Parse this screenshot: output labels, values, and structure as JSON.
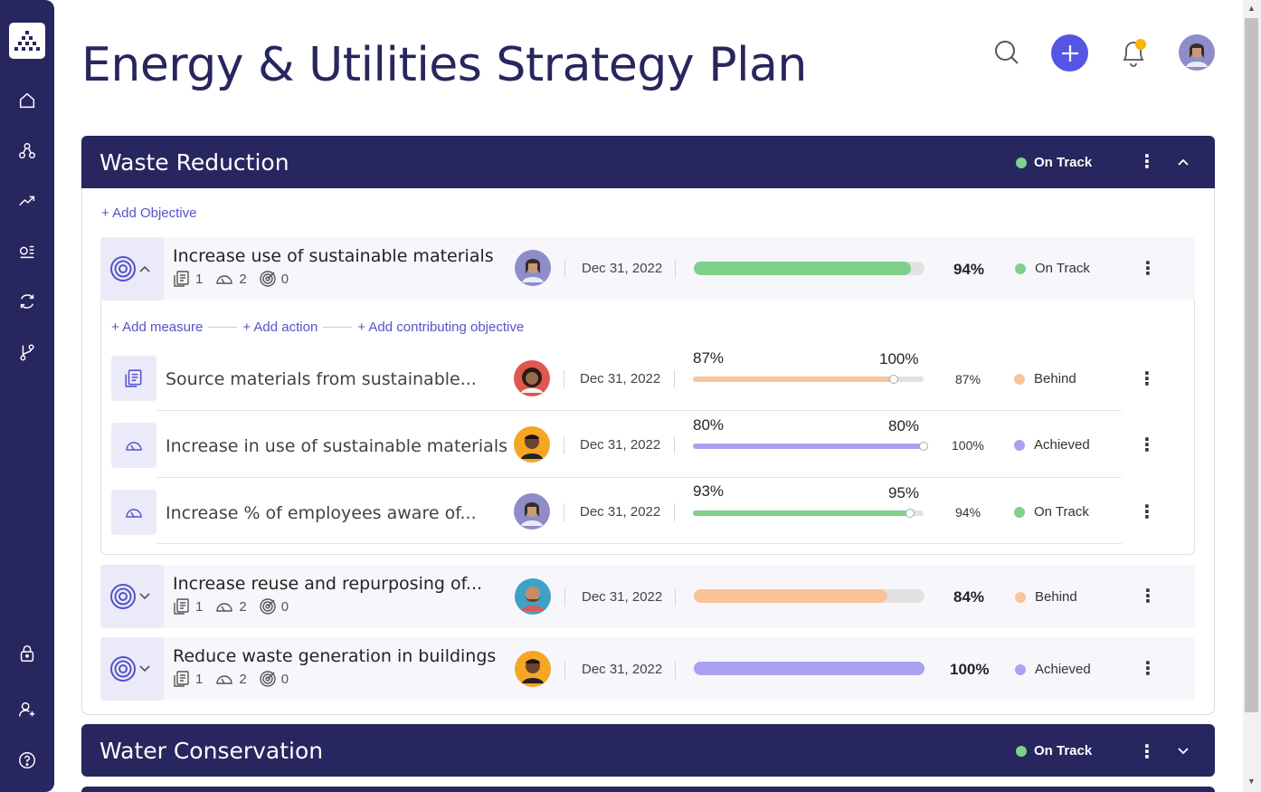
{
  "page": {
    "title": "Energy & Utilities Strategy Plan"
  },
  "colors": {
    "sidebar": "#27265e",
    "accent": "#5553c9",
    "on_track": "#7fd08a",
    "behind": "#f9c49a",
    "achieved": "#a9a2f0"
  },
  "sidebar": {
    "icons": [
      "logo-icon",
      "home-icon",
      "hierarchy-icon",
      "trend-icon",
      "list-icon",
      "refresh-icon",
      "branch-icon",
      "lock-icon",
      "add-user-icon",
      "help-icon"
    ]
  },
  "sections": [
    {
      "title": "Waste Reduction",
      "status": "On Track",
      "add_objective": "+ Add Objective",
      "objectives": [
        {
          "title": "Increase use of sustainable materials",
          "docs": "1",
          "measures": "2",
          "targets": "0",
          "date": "Dec 31, 2022",
          "progress": 94,
          "percent": "94%",
          "status": "On Track",
          "expanded": true,
          "add_measure": "+ Add measure",
          "add_action": "+ Add action",
          "add_contributing": "+ Add contributing objective",
          "key_results": [
            {
              "title": "Source materials from sustainable...",
              "date": "Dec 31, 2022",
              "current": "87%",
              "target": "100%",
              "progress": 87,
              "target_progress": 87,
              "percent": "87%",
              "status": "Behind"
            },
            {
              "title": "Increase in use of sustainable materials",
              "date": "Dec 31, 2022",
              "current": "80%",
              "target": "80%",
              "progress": 100,
              "target_progress": 100,
              "percent": "100%",
              "status": "Achieved"
            },
            {
              "title": "Increase % of employees aware of...",
              "date": "Dec 31, 2022",
              "current": "93%",
              "target": "95%",
              "progress": 94,
              "target_progress": 94,
              "percent": "94%",
              "status": "On Track"
            }
          ]
        },
        {
          "title": "Increase reuse and repurposing of...",
          "docs": "1",
          "measures": "2",
          "targets": "0",
          "date": "Dec 31, 2022",
          "progress": 84,
          "percent": "84%",
          "status": "Behind"
        },
        {
          "title": "Reduce waste generation in buildings",
          "docs": "1",
          "measures": "2",
          "targets": "0",
          "date": "Dec 31, 2022",
          "progress": 100,
          "percent": "100%",
          "status": "Achieved"
        }
      ]
    },
    {
      "title": "Water Conservation",
      "status": "On Track"
    }
  ]
}
